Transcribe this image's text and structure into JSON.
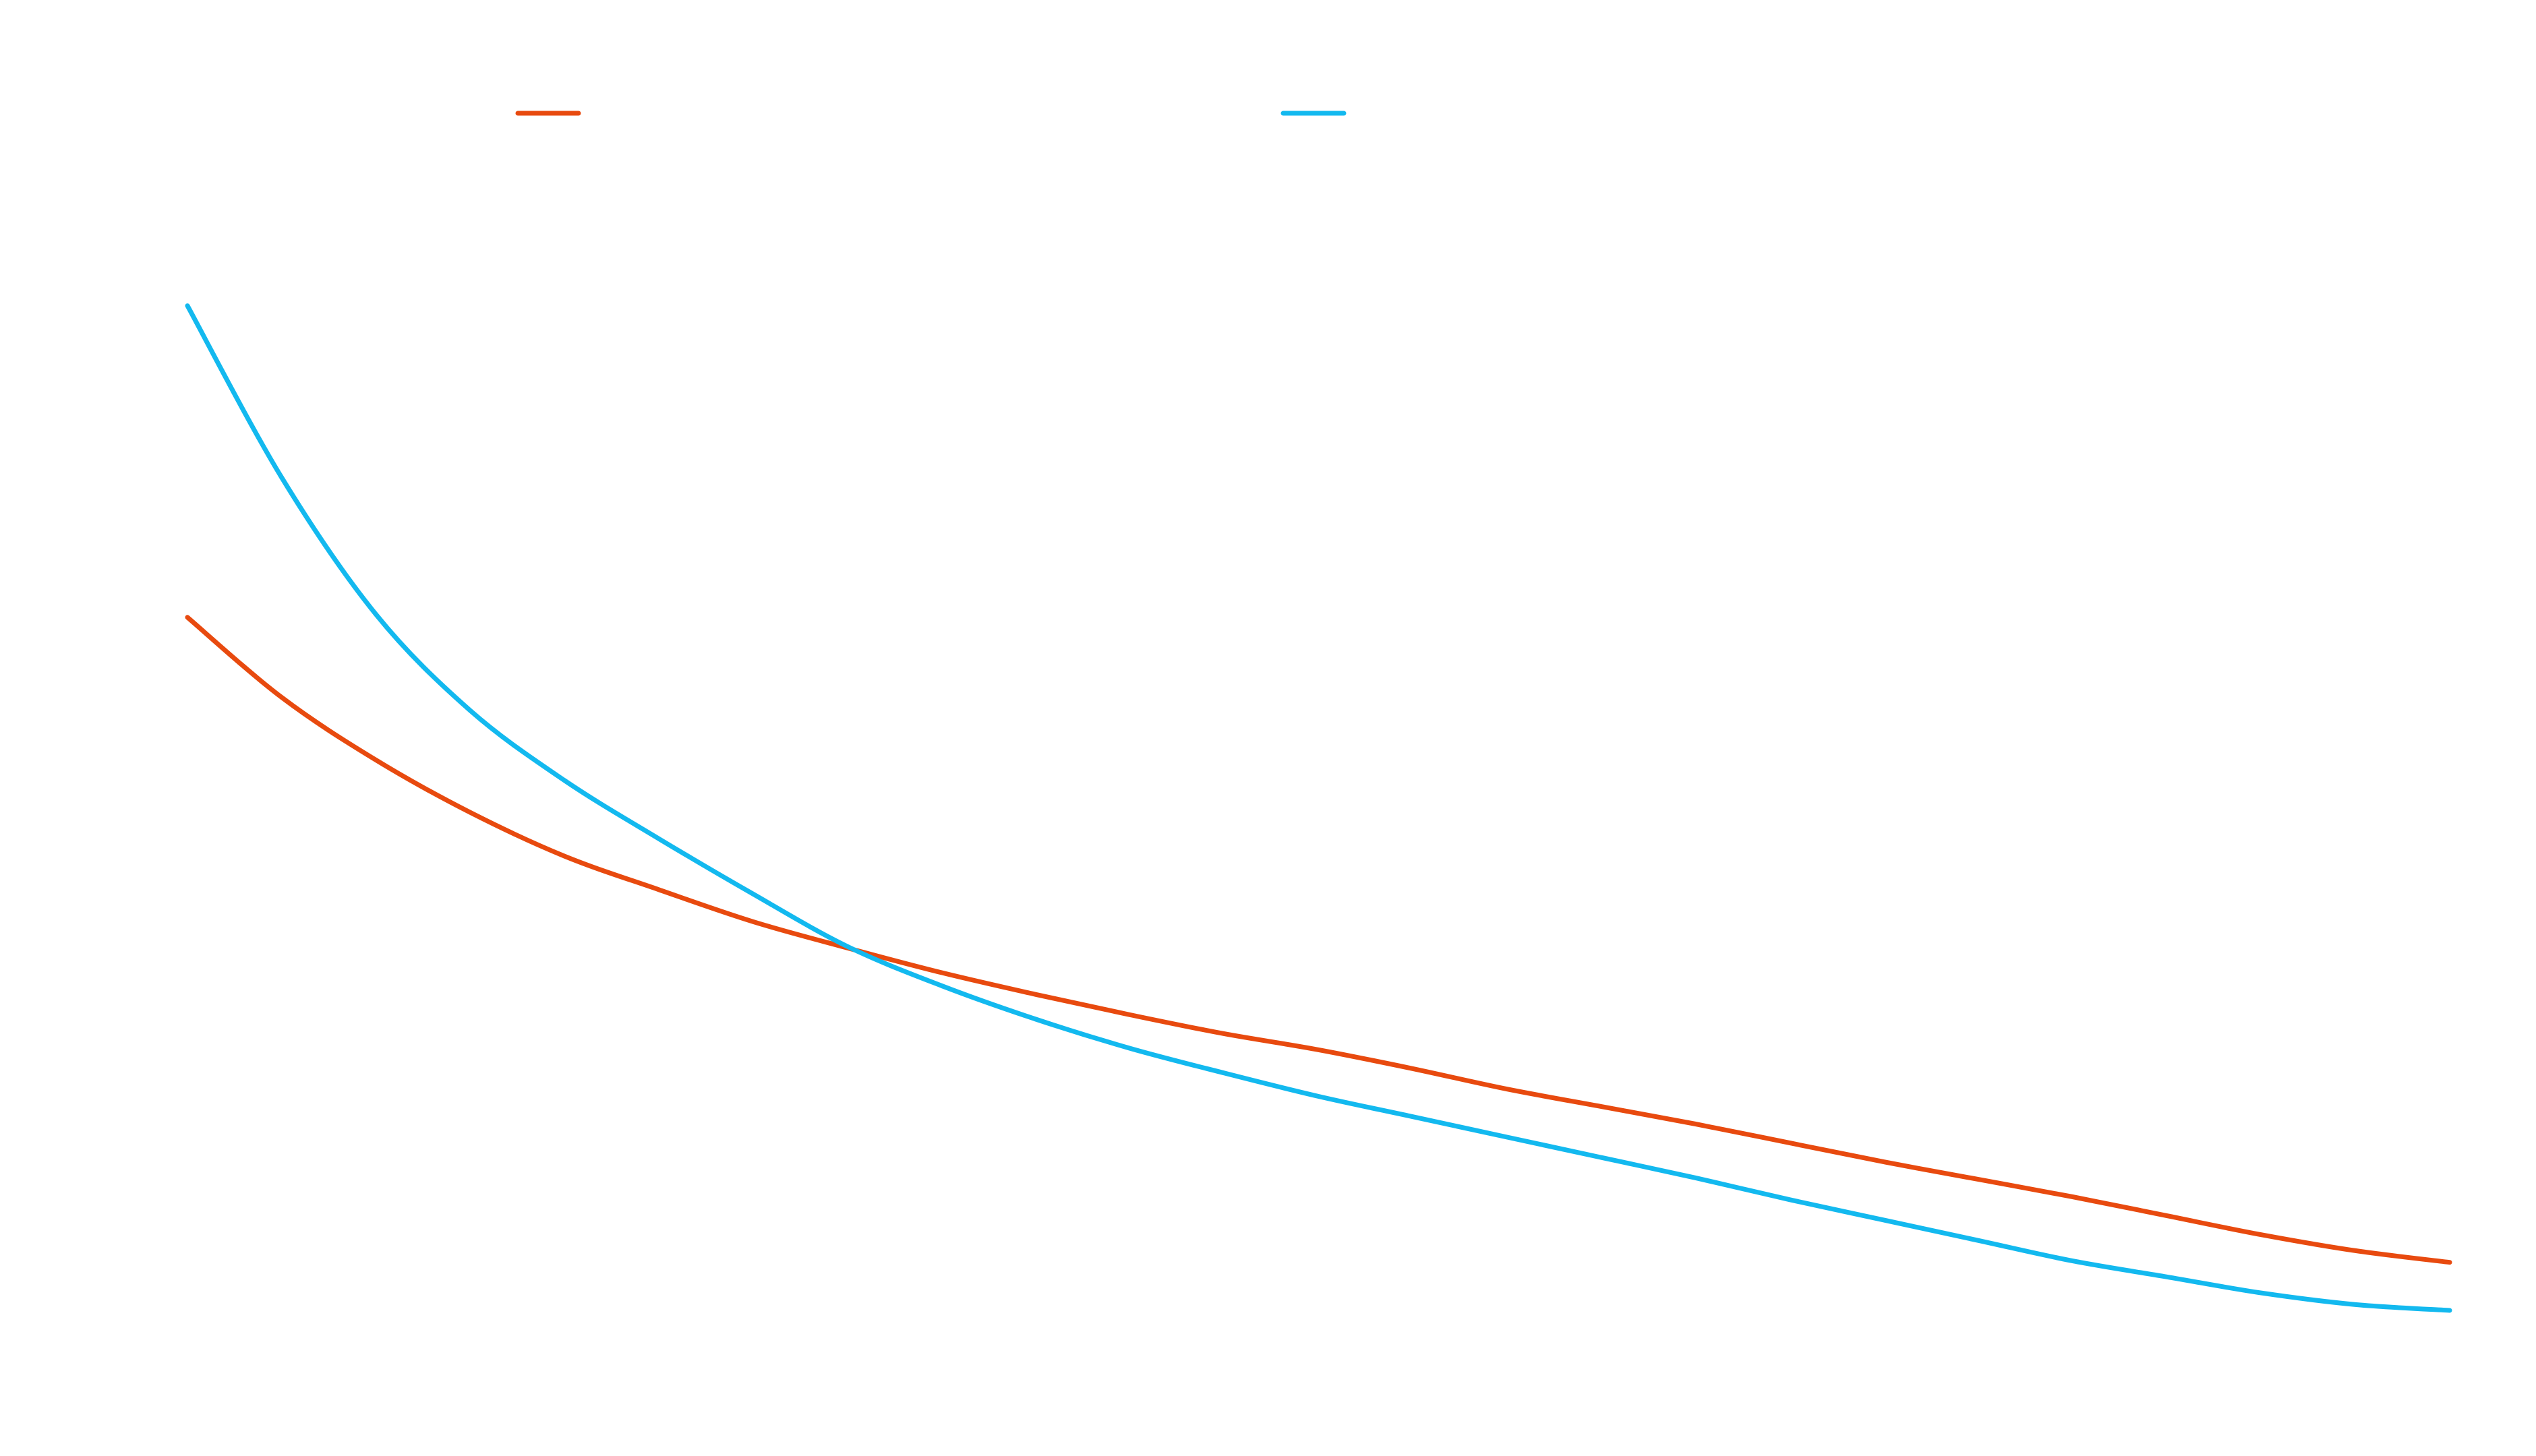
{
  "chart_data": {
    "type": "line",
    "title": "",
    "xlabel": "",
    "ylabel": "",
    "grid": false,
    "legend_placement": "top",
    "x": [
      0,
      1,
      2,
      3,
      4,
      5,
      6,
      7,
      8,
      9,
      10,
      11,
      12,
      13,
      14,
      15,
      16,
      17,
      18,
      19,
      20,
      21,
      22,
      23,
      24
    ],
    "xlim": [
      0,
      24
    ],
    "ylim": [
      0,
      100
    ],
    "series": [
      {
        "name": "",
        "color": "#e84a0f",
        "values": [
          57.6,
          52.1,
          47.8,
          44.2,
          41.2,
          38.9,
          36.7,
          34.9,
          33.2,
          31.7,
          30.3,
          29.0,
          27.9,
          26.6,
          25.2,
          24.0,
          22.8,
          21.5,
          20.2,
          19.0,
          17.8,
          16.5,
          15.2,
          14.1,
          13.3
        ]
      },
      {
        "name": "",
        "color": "#13b9ef",
        "values": [
          79.0,
          67.2,
          57.8,
          51.2,
          46.4,
          42.4,
          38.6,
          35.0,
          32.3,
          30.0,
          28.0,
          26.3,
          24.7,
          23.3,
          21.9,
          20.5,
          19.1,
          17.6,
          16.2,
          14.8,
          13.4,
          12.3,
          11.2,
          10.4,
          10.0
        ]
      }
    ]
  }
}
